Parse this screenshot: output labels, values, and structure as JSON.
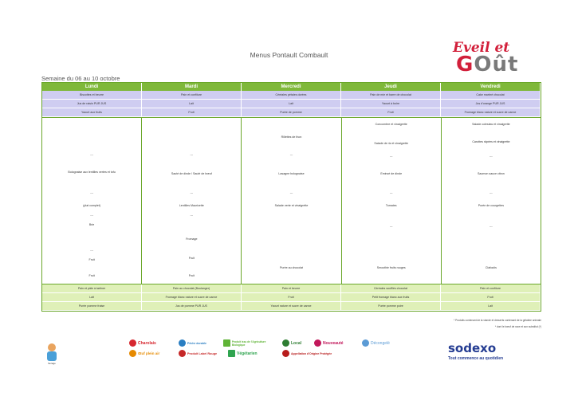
{
  "title": "Menus Pontault Combault",
  "logo": {
    "line1": "Eveil et",
    "line2a": "G",
    "line2b": "O",
    "line2c": "ût"
  },
  "week": "Semaine du 06 au 10 octobre",
  "days": [
    "Lundi",
    "Mardi",
    "Mercredi",
    "Jeudi",
    "Vendredi"
  ],
  "breakfast": [
    [
      "Biscottes et beurre",
      "Pain et confiture",
      "Céréales pétales dorées",
      "Pain de mie et barre de chocolat",
      "Cake marbré chocolat"
    ],
    [
      "Jus de raisin PUR JUS",
      "Lait",
      "Lait",
      "Yaourt à boire",
      "Jus d'orange PUR JUS"
    ],
    [
      "Yaourt aux fruits",
      "Fruit",
      "Purée de pomme",
      "Fruit",
      "Fromage blanc nature et sucre de canne"
    ]
  ],
  "lunch": {
    "lundi": [
      "---",
      "Bolognaise aux lentilles vertes et tofu",
      "---",
      "(plat complet)",
      "---",
      "Brie",
      "---",
      "Fruit",
      "Fruit"
    ],
    "mardi": [
      "---",
      "Sauté de dinde / Sauté de bœuf",
      "---",
      "Lentilles Mauricette",
      "---",
      "Fromage",
      "Fruit",
      "Fruit"
    ],
    "mercredi": [
      "Rillettes de thon",
      "---",
      "Lasagne bolognaise",
      "---",
      "Salade verte et vinaigrette",
      "Purée au chocolat"
    ],
    "jeudi": [
      "Concombre et vinaigrette",
      "Salade de riz et vinaigrette",
      "---",
      "Emincé de dinde",
      "---",
      "Tomates",
      "---",
      "Smoothie fruits rouges"
    ],
    "vendredi": [
      "Salade coleslaw et vinaigrette",
      "Carottes râpées et vinaigrette",
      "---",
      "Saumon sauce citron",
      "---",
      "Purée de courgettes",
      "---",
      "Clafoutis"
    ]
  },
  "snack": [
    [
      "Pain et pâte à tartiner",
      "Pain au chocolat (Boulanger)",
      "Pain et beurre",
      "Céréales soufflés chocolat",
      "Pain et confiture"
    ],
    [
      "Lait",
      "Fromage blanc nature et sucre de canne",
      "Fruit",
      "Petit fromage blanc aux fruits",
      "Fruit"
    ],
    [
      "Purée pomme fraise",
      "Jus de pomme PUR JUS",
      "Yaourt nature et sucre de canne",
      "Purée pomme poire",
      "Lait"
    ]
  ],
  "notes": [
    "* Produits contenant de la viande et desserts contenant de la gélatine animale",
    "* dont le bœuf de race et son substitut (*)"
  ],
  "legend": [
    {
      "label": "Charolais",
      "color": "#d6272f"
    },
    {
      "label": "Pêche durable",
      "color": "#2a7ec2"
    },
    {
      "label": "Produit issu de l'Agriculture Biologique",
      "color": "#5fb336"
    },
    {
      "label": "Local",
      "color": "#2e7d32"
    },
    {
      "label": "Nouveauté",
      "color": "#c2185b"
    },
    {
      "label": "Décongelé",
      "color": "#5b9bd5"
    },
    {
      "label": "Œuf plein air",
      "color": "#e68a00"
    },
    {
      "label": "Produit Label Rouge",
      "color": "#c62828"
    },
    {
      "label": "Végétarien",
      "color": "#2fa44f"
    },
    {
      "label": "Appellation d'Origine Protégée",
      "color": "#b71c1c"
    }
  ],
  "sodexo": {
    "name": "sodexo",
    "tagline": "Tout commence au quotidien"
  },
  "mascot_label": "Sérage"
}
